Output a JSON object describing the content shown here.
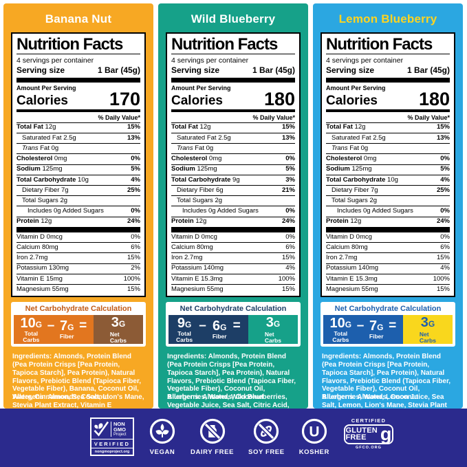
{
  "panels": [
    {
      "flavor": "Banana Nut",
      "bg": "#F7A823",
      "title_color": "#FFFFFF",
      "nutrition": {
        "title": "Nutrition Facts",
        "servings": "4 servings per container",
        "serving_size_label": "Serving size",
        "serving_size_value": "1 Bar (45g)",
        "amount_label": "Amount Per Serving",
        "calories_label": "Calories",
        "calories": "170",
        "dv_header": "% Daily Value*",
        "rows": [
          {
            "name": "Total Fat",
            "amount": "12g",
            "dv": "15%",
            "bold": true,
            "indent": 0
          },
          {
            "name": "Saturated Fat",
            "amount": "2.5g",
            "dv": "13%",
            "bold": false,
            "indent": 1
          },
          {
            "italic_prefix": "Trans",
            "name": "Fat",
            "amount": "0g",
            "dv": "",
            "bold": false,
            "indent": 1
          },
          {
            "name": "Cholesterol",
            "amount": "0mg",
            "dv": "0%",
            "bold": true,
            "indent": 0
          },
          {
            "name": "Sodium",
            "amount": "125mg",
            "dv": "5%",
            "bold": true,
            "indent": 0
          },
          {
            "name": "Total Carbohydrate",
            "amount": "10g",
            "dv": "4%",
            "bold": true,
            "indent": 0
          },
          {
            "name": "Dietary Fiber",
            "amount": "7g",
            "dv": "25%",
            "bold": false,
            "indent": 1
          },
          {
            "name": "Total Sugars",
            "amount": "2g",
            "dv": "",
            "bold": false,
            "indent": 1
          },
          {
            "name": "Includes 0g Added Sugars",
            "amount": "",
            "dv": "0%",
            "bold": false,
            "indent": 2
          },
          {
            "name": "Protein",
            "amount": "12g",
            "dv": "24%",
            "bold": true,
            "indent": 0
          }
        ],
        "vitamins": [
          {
            "name": "Vitamin D",
            "amount": "0mcg",
            "dv": "0%"
          },
          {
            "name": "Calcium",
            "amount": "80mg",
            "dv": "6%"
          },
          {
            "name": "Iron",
            "amount": "2.7mg",
            "dv": "15%"
          },
          {
            "name": "Potassium",
            "amount": "130mg",
            "dv": "2%"
          },
          {
            "name": "Vitamin E",
            "amount": "15mg",
            "dv": "100%"
          },
          {
            "name": "Magnesium",
            "amount": "55mg",
            "dv": "15%"
          }
        ]
      },
      "netcarb": {
        "header": "Net Carbohydrate Calculation",
        "header_color": "#C25B17",
        "left_bg": "#E2761F",
        "right_bg": "#8C5B36",
        "net_color": "#FFFFFF",
        "total": "10",
        "fiber": "7",
        "net": "3",
        "unit": "G",
        "minus": "–",
        "equals": "=",
        "total_label": "Total\nCarbs",
        "fiber_label": "Fiber",
        "net_label": "Net\nCarbs"
      },
      "ingredients_label": "Ingredients:",
      "ingredients": " Almonds, Protein Blend (Pea Protein Crisps [Pea Protein, Tapioca Starch], Pea Protein), Natural Flavors, Prebiotic Blend (Tapioca Fiber, Vegetable Fiber), Banana, Coconut Oil, Water, Cinnamon, Sea Salt, Lion's Mane, Stevia Plant Extract, Vitamin E",
      "allergens_label": "Allergens:",
      "allergens": " Almonds, Coconut"
    },
    {
      "flavor": "Wild Blueberry",
      "bg": "#16A189",
      "title_color": "#FFFFFF",
      "nutrition": {
        "title": "Nutrition Facts",
        "servings": "4 servings per container",
        "serving_size_label": "Serving size",
        "serving_size_value": "1 Bar (45g)",
        "amount_label": "Amount Per Serving",
        "calories_label": "Calories",
        "calories": "180",
        "dv_header": "% Daily Value*",
        "rows": [
          {
            "name": "Total Fat",
            "amount": "12g",
            "dv": "15%",
            "bold": true,
            "indent": 0
          },
          {
            "name": "Saturated Fat",
            "amount": "2.5g",
            "dv": "13%",
            "bold": false,
            "indent": 1
          },
          {
            "italic_prefix": "Trans",
            "name": "Fat",
            "amount": "0g",
            "dv": "",
            "bold": false,
            "indent": 1
          },
          {
            "name": "Cholesterol",
            "amount": "0mg",
            "dv": "0%",
            "bold": true,
            "indent": 0
          },
          {
            "name": "Sodium",
            "amount": "125mg",
            "dv": "5%",
            "bold": true,
            "indent": 0
          },
          {
            "name": "Total Carbohydrate",
            "amount": "9g",
            "dv": "3%",
            "bold": true,
            "indent": 0
          },
          {
            "name": "Dietary Fiber",
            "amount": "6g",
            "dv": "21%",
            "bold": false,
            "indent": 1
          },
          {
            "name": "Total Sugars",
            "amount": "2g",
            "dv": "",
            "bold": false,
            "indent": 1
          },
          {
            "name": "Includes 0g Added Sugars",
            "amount": "",
            "dv": "0%",
            "bold": false,
            "indent": 2
          },
          {
            "name": "Protein",
            "amount": "12g",
            "dv": "24%",
            "bold": true,
            "indent": 0
          }
        ],
        "vitamins": [
          {
            "name": "Vitamin D",
            "amount": "0mcg",
            "dv": "0%"
          },
          {
            "name": "Calcium",
            "amount": "80mg",
            "dv": "6%"
          },
          {
            "name": "Iron",
            "amount": "2.7mg",
            "dv": "15%"
          },
          {
            "name": "Potassium",
            "amount": "140mg",
            "dv": "4%"
          },
          {
            "name": "Vitamin E",
            "amount": "15.3mg",
            "dv": "100%"
          },
          {
            "name": "Magnesium",
            "amount": "55mg",
            "dv": "15%"
          }
        ]
      },
      "netcarb": {
        "header": "Net Carbohydrate Calculation",
        "header_color": "#1D3E66",
        "left_bg": "#1D3E66",
        "right_bg": "#16A189",
        "net_color": "#FFFFFF",
        "total": "9",
        "fiber": "6",
        "net": "3",
        "unit": "G",
        "minus": "–",
        "equals": "=",
        "total_label": "Total\nCarbs",
        "fiber_label": "Fiber",
        "net_label": "Net\nCarbs"
      },
      "ingredients_label": "Ingredients:",
      "ingredients": " Almonds, Protein Blend (Pea Protein Crisps [Pea Protein, Tapioca Starch], Pea Protein), Natural Flavors, Prebiotic Blend (Tapioca Fiber, Vegetable Fiber), Coconut Oil, Blueberries, Water, Wild Blueberries, Vegetable Juice, Sea Salt, Citric Acid, Lion's Mane, Stevia Plant Extract, Vitamin E",
      "allergens_label": "Allergens:",
      "allergens": " Almonds, Coconut"
    },
    {
      "flavor": "Lemon Blueberry",
      "bg": "#2BA7E1",
      "title_color": "#FFD41F",
      "nutrition": {
        "title": "Nutrition Facts",
        "servings": "4 servings per container",
        "serving_size_label": "Serving size",
        "serving_size_value": "1 Bar (45g)",
        "amount_label": "Amount Per Serving",
        "calories_label": "Calories",
        "calories": "180",
        "dv_header": "% Daily Value*",
        "rows": [
          {
            "name": "Total Fat",
            "amount": "12g",
            "dv": "15%",
            "bold": true,
            "indent": 0
          },
          {
            "name": "Saturated Fat",
            "amount": "2.5g",
            "dv": "13%",
            "bold": false,
            "indent": 1
          },
          {
            "italic_prefix": "Trans",
            "name": "Fat",
            "amount": "0g",
            "dv": "",
            "bold": false,
            "indent": 1
          },
          {
            "name": "Cholesterol",
            "amount": "0mg",
            "dv": "0%",
            "bold": true,
            "indent": 0
          },
          {
            "name": "Sodium",
            "amount": "125mg",
            "dv": "5%",
            "bold": true,
            "indent": 0
          },
          {
            "name": "Total Carbohydrate",
            "amount": "10g",
            "dv": "4%",
            "bold": true,
            "indent": 0
          },
          {
            "name": "Dietary Fiber",
            "amount": "7g",
            "dv": "25%",
            "bold": false,
            "indent": 1
          },
          {
            "name": "Total Sugars",
            "amount": "2g",
            "dv": "",
            "bold": false,
            "indent": 1
          },
          {
            "name": "Includes 0g Added Sugars",
            "amount": "",
            "dv": "0%",
            "bold": false,
            "indent": 2
          },
          {
            "name": "Protein",
            "amount": "12g",
            "dv": "24%",
            "bold": true,
            "indent": 0
          }
        ],
        "vitamins": [
          {
            "name": "Vitamin D",
            "amount": "0mcg",
            "dv": "0%"
          },
          {
            "name": "Calcium",
            "amount": "80mg",
            "dv": "6%"
          },
          {
            "name": "Iron",
            "amount": "2.7mg",
            "dv": "15%"
          },
          {
            "name": "Potassium",
            "amount": "140mg",
            "dv": "4%"
          },
          {
            "name": "Vitamin E",
            "amount": "15.3mg",
            "dv": "100%"
          },
          {
            "name": "Magnesium",
            "amount": "55mg",
            "dv": "15%"
          }
        ]
      },
      "netcarb": {
        "header": "Net Carbohydrate Calculation",
        "header_color": "#1D5FAD",
        "left_bg": "#1D5FAD",
        "right_bg": "#F9D71D",
        "net_color": "#1D5FAD",
        "total": "10",
        "fiber": "7",
        "net": "3",
        "unit": "G",
        "minus": "–",
        "equals": "=",
        "total_label": "Total\nCarbs",
        "fiber_label": "Fiber",
        "net_label": "Net\nCarbs"
      },
      "ingredients_label": "Ingredients:",
      "ingredients": " Almonds, Protein Blend (Pea Protein Crisps [Pea Protein, Tapioca Starch], Pea Protein), Natural Flavors, Prebiotic Blend (Tapioca Fiber, Vegetable Fiber), Coconut Oil, Blueberries, Water, Lemon Juice, Sea Salt, Lemon, Lion's Mane, Stevia Plant Extract, Vitamin E",
      "allergens_label": "Allergens:",
      "allergens": " Almonds, Coconut"
    }
  ],
  "footer": {
    "bg": "#2B2A8D",
    "nongmo": {
      "l1": "NON",
      "l2": "GMO",
      "l3": "Project",
      "verified": "VERIFIED",
      "url": "nongmoproject.org"
    },
    "vegan_label": "VEGAN",
    "dairy_label": "DAIRY FREE",
    "soy_label": "SOY FREE",
    "kosher_label": "KOSHER",
    "kosher_letter": "U",
    "glutenfree": {
      "cert": "CERTIFIED",
      "w1": "GLUTEN",
      "w2": "FREE",
      "g": "g",
      "url": "GFCO.ORG"
    }
  }
}
